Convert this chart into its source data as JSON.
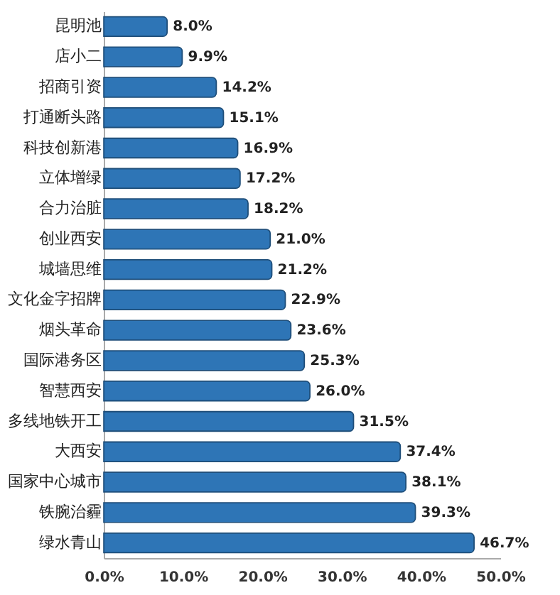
{
  "chart_data": {
    "type": "bar",
    "orientation": "horizontal",
    "categories": [
      "昆明池",
      "店小二",
      "招商引资",
      "打通断头路",
      "科技创新港",
      "立体增绿",
      "合力治脏",
      "创业西安",
      "城墙思维",
      "文化金字招牌",
      "烟头革命",
      "国际港务区",
      "智慧西安",
      "多线地铁开工",
      "大西安",
      "国家中心城市",
      "铁腕治霾",
      "绿水青山"
    ],
    "values": [
      8.0,
      9.9,
      14.2,
      15.1,
      16.9,
      17.2,
      18.2,
      21.0,
      21.2,
      22.9,
      23.6,
      25.3,
      26.0,
      31.5,
      37.4,
      38.1,
      39.3,
      46.7
    ],
    "value_labels": [
      "8.0%",
      "9.9%",
      "14.2%",
      "15.1%",
      "16.9%",
      "17.2%",
      "18.2%",
      "21.0%",
      "21.2%",
      "22.9%",
      "23.6%",
      "25.3%",
      "26.0%",
      "31.5%",
      "37.4%",
      "38.1%",
      "39.3%",
      "46.7%"
    ],
    "color": "#2e75b6",
    "xlim": [
      0,
      50
    ],
    "xticks": [
      {
        "value": 0,
        "label": "0.0%"
      },
      {
        "value": 10,
        "label": "10.0%"
      },
      {
        "value": 20,
        "label": "20.0%"
      },
      {
        "value": 30,
        "label": "30.0%"
      },
      {
        "value": 40,
        "label": "40.0%"
      },
      {
        "value": 50,
        "label": "50.0%"
      }
    ],
    "grid": false
  }
}
